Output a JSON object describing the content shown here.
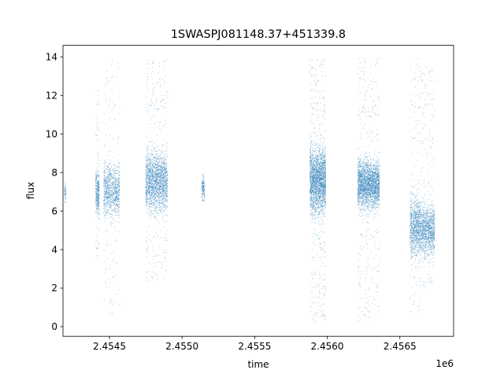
{
  "chart_data": {
    "type": "scatter",
    "title": "1SWASPJ081148.37+451339.8",
    "xlabel": "time",
    "ylabel": "flux",
    "x_offset_label": "1e6",
    "xlim": [
      2454180,
      2456870
    ],
    "ylim": [
      -0.5,
      14.6
    ],
    "x_ticks": [
      2454500,
      2455000,
      2455500,
      2456000,
      2456500
    ],
    "x_tick_labels": [
      "2.4545",
      "2.4550",
      "2.4555",
      "2.4560",
      "2.4565"
    ],
    "y_ticks": [
      0,
      2,
      4,
      6,
      8,
      10,
      12,
      14
    ],
    "y_tick_labels": [
      "0",
      "2",
      "4",
      "6",
      "8",
      "10",
      "12",
      "14"
    ],
    "grid": false,
    "marker_color": "#1f77b4",
    "series": [
      {
        "clusters": [
          {
            "x_range": [
              2454190,
              2454200
            ],
            "y_core": [
              6.4,
              7.4
            ],
            "y_range": [
              6.3,
              7.5
            ],
            "n": 60
          },
          {
            "x_range": [
              2454405,
              2454430
            ],
            "y_core": [
              6.0,
              7.9
            ],
            "y_range": [
              3.4,
              12.3
            ],
            "n": 420
          },
          {
            "x_range": [
              2454460,
              2454570
            ],
            "y_core": [
              5.9,
              8.2
            ],
            "y_range": [
              0.6,
              14.0
            ],
            "n": 1100
          },
          {
            "x_range": [
              2454750,
              2454900
            ],
            "y_core": [
              6.2,
              8.9
            ],
            "y_range": [
              2.3,
              13.9
            ],
            "n": 2200
          },
          {
            "x_range": [
              2455135,
              2455155
            ],
            "y_core": [
              6.6,
              7.8
            ],
            "y_range": [
              6.5,
              7.9
            ],
            "n": 160
          },
          {
            "x_range": [
              2455880,
              2455990
            ],
            "y_core": [
              6.1,
              9.1
            ],
            "y_range": [
              0.2,
              13.9
            ],
            "n": 2600
          },
          {
            "x_range": [
              2456210,
              2456360
            ],
            "y_core": [
              6.3,
              8.5
            ],
            "y_range": [
              0.3,
              14.0
            ],
            "n": 2700
          },
          {
            "x_range": [
              2456570,
              2456640
            ],
            "y_core": [
              3.8,
              6.5
            ],
            "y_range": [
              0.7,
              14.0
            ],
            "n": 1000
          },
          {
            "x_range": [
              2456640,
              2456740
            ],
            "y_core": [
              3.9,
              6.2
            ],
            "y_range": [
              2.0,
              13.5
            ],
            "n": 1300
          }
        ]
      }
    ]
  }
}
